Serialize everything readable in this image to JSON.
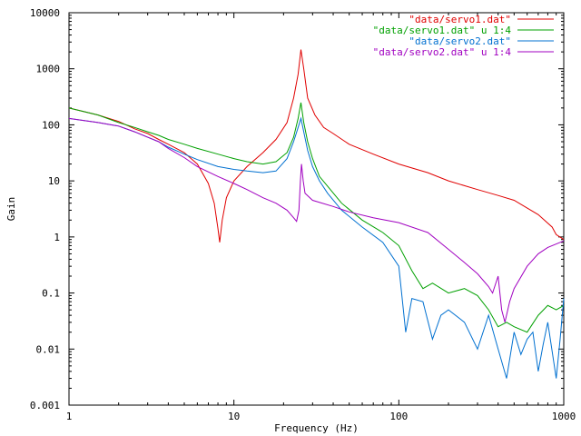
{
  "chart_data": {
    "type": "line",
    "title": "",
    "xlabel": "Frequency (Hz)",
    "ylabel": "Gain",
    "xscale": "log",
    "yscale": "log",
    "xlim": [
      1,
      1000
    ],
    "ylim": [
      0.001,
      10000
    ],
    "x_ticks": [
      "1",
      "10",
      "100",
      "1000"
    ],
    "y_ticks": [
      "0.001",
      "0.01",
      "0.1",
      "1",
      "10",
      "100",
      "1000",
      "10000"
    ],
    "grid": false,
    "legend_position": "top-right",
    "series": [
      {
        "name": "\"data/servo1.dat\"",
        "color": "#e00000",
        "points": [
          [
            1,
            200
          ],
          [
            1.5,
            150
          ],
          [
            2,
            115
          ],
          [
            2.5,
            85
          ],
          [
            3,
            70
          ],
          [
            3.5,
            55
          ],
          [
            4,
            45
          ],
          [
            5,
            32
          ],
          [
            6,
            20
          ],
          [
            7,
            9
          ],
          [
            7.6,
            4
          ],
          [
            8,
            1.4
          ],
          [
            8.2,
            0.8
          ],
          [
            8.5,
            2
          ],
          [
            9,
            5
          ],
          [
            10,
            10
          ],
          [
            12,
            18
          ],
          [
            15,
            32
          ],
          [
            18,
            55
          ],
          [
            21,
            110
          ],
          [
            23,
            300
          ],
          [
            24.5,
            800
          ],
          [
            25.5,
            2200
          ],
          [
            26.5,
            1000
          ],
          [
            28,
            300
          ],
          [
            31,
            150
          ],
          [
            35,
            90
          ],
          [
            40,
            70
          ],
          [
            50,
            45
          ],
          [
            70,
            30
          ],
          [
            100,
            20
          ],
          [
            150,
            14
          ],
          [
            200,
            10
          ],
          [
            300,
            7
          ],
          [
            400,
            5.5
          ],
          [
            500,
            4.5
          ],
          [
            700,
            2.5
          ],
          [
            850,
            1.5
          ],
          [
            900,
            1.1
          ],
          [
            1000,
            0.9
          ]
        ]
      },
      {
        "name": "\"data/servo1.dat\" u 1:4",
        "color": "#00a000",
        "points": [
          [
            1,
            200
          ],
          [
            1.5,
            150
          ],
          [
            2,
            110
          ],
          [
            2.5,
            90
          ],
          [
            3,
            75
          ],
          [
            3.5,
            65
          ],
          [
            4,
            55
          ],
          [
            5,
            45
          ],
          [
            6,
            38
          ],
          [
            8,
            30
          ],
          [
            10,
            25
          ],
          [
            12,
            22
          ],
          [
            15,
            20
          ],
          [
            18,
            22
          ],
          [
            21,
            32
          ],
          [
            23,
            60
          ],
          [
            24.5,
            130
          ],
          [
            25.5,
            250
          ],
          [
            26.5,
            110
          ],
          [
            28,
            50
          ],
          [
            30,
            25
          ],
          [
            33,
            12
          ],
          [
            37,
            8
          ],
          [
            45,
            4
          ],
          [
            60,
            2
          ],
          [
            80,
            1.2
          ],
          [
            100,
            0.7
          ],
          [
            120,
            0.25
          ],
          [
            140,
            0.12
          ],
          [
            160,
            0.15
          ],
          [
            200,
            0.1
          ],
          [
            250,
            0.12
          ],
          [
            300,
            0.09
          ],
          [
            350,
            0.05
          ],
          [
            400,
            0.025
          ],
          [
            450,
            0.03
          ],
          [
            500,
            0.025
          ],
          [
            600,
            0.02
          ],
          [
            700,
            0.04
          ],
          [
            800,
            0.06
          ],
          [
            900,
            0.05
          ],
          [
            1000,
            0.06
          ]
        ]
      },
      {
        "name": "\"data/servo2.dat\"",
        "color": "#0070d0",
        "points": [
          [
            1,
            130
          ],
          [
            1.5,
            110
          ],
          [
            2,
            95
          ],
          [
            2.5,
            75
          ],
          [
            3,
            60
          ],
          [
            3.5,
            50
          ],
          [
            4,
            40
          ],
          [
            5,
            30
          ],
          [
            6,
            24
          ],
          [
            8,
            18
          ],
          [
            10,
            16
          ],
          [
            12,
            15
          ],
          [
            15,
            14
          ],
          [
            18,
            15
          ],
          [
            21,
            25
          ],
          [
            23,
            50
          ],
          [
            24.5,
            90
          ],
          [
            25.5,
            130
          ],
          [
            26.5,
            75
          ],
          [
            28,
            35
          ],
          [
            30,
            18
          ],
          [
            33,
            10
          ],
          [
            37,
            6
          ],
          [
            45,
            3
          ],
          [
            60,
            1.5
          ],
          [
            80,
            0.8
          ],
          [
            100,
            0.3
          ],
          [
            110,
            0.02
          ],
          [
            120,
            0.08
          ],
          [
            140,
            0.07
          ],
          [
            160,
            0.015
          ],
          [
            180,
            0.04
          ],
          [
            200,
            0.05
          ],
          [
            250,
            0.03
          ],
          [
            300,
            0.01
          ],
          [
            350,
            0.04
          ],
          [
            400,
            0.01
          ],
          [
            450,
            0.003
          ],
          [
            500,
            0.02
          ],
          [
            550,
            0.008
          ],
          [
            600,
            0.015
          ],
          [
            650,
            0.02
          ],
          [
            700,
            0.004
          ],
          [
            750,
            0.012
          ],
          [
            800,
            0.03
          ],
          [
            900,
            0.003
          ],
          [
            950,
            0.015
          ],
          [
            1000,
            0.08
          ]
        ]
      },
      {
        "name": "\"data/servo2.dat\" u 1:4",
        "color": "#a000c0",
        "points": [
          [
            1,
            130
          ],
          [
            1.5,
            110
          ],
          [
            2,
            95
          ],
          [
            2.5,
            75
          ],
          [
            3,
            60
          ],
          [
            3.5,
            50
          ],
          [
            4,
            38
          ],
          [
            5,
            26
          ],
          [
            6,
            18
          ],
          [
            8,
            12
          ],
          [
            10,
            9
          ],
          [
            12,
            7
          ],
          [
            15,
            5
          ],
          [
            18,
            4
          ],
          [
            21,
            3
          ],
          [
            23,
            2.2
          ],
          [
            24,
            1.9
          ],
          [
            24.8,
            3
          ],
          [
            25.3,
            10
          ],
          [
            25.7,
            20
          ],
          [
            26.3,
            10
          ],
          [
            27,
            6
          ],
          [
            30,
            4.5
          ],
          [
            40,
            3.5
          ],
          [
            50,
            2.8
          ],
          [
            70,
            2.2
          ],
          [
            100,
            1.8
          ],
          [
            150,
            1.2
          ],
          [
            200,
            0.6
          ],
          [
            250,
            0.35
          ],
          [
            300,
            0.22
          ],
          [
            350,
            0.13
          ],
          [
            370,
            0.1
          ],
          [
            400,
            0.2
          ],
          [
            420,
            0.05
          ],
          [
            440,
            0.03
          ],
          [
            470,
            0.07
          ],
          [
            500,
            0.12
          ],
          [
            600,
            0.3
          ],
          [
            700,
            0.5
          ],
          [
            800,
            0.65
          ],
          [
            1000,
            0.85
          ]
        ]
      }
    ]
  }
}
